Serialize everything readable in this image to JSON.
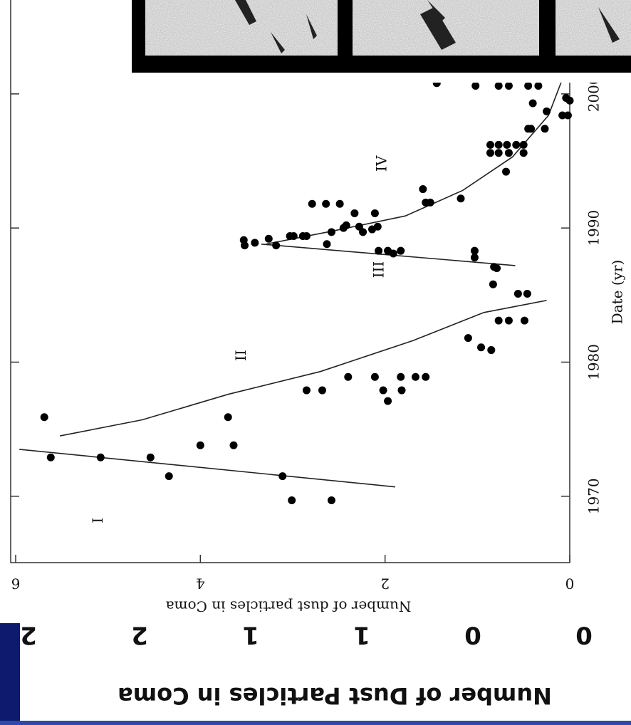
{
  "chart_data": {
    "type": "scatter",
    "x_label": "Date (yr)",
    "y_label": "Number of dust particles in Coma",
    "xlim": [
      1965,
      2007
    ],
    "xticks": [
      1970,
      1980,
      1990,
      2000
    ],
    "ylim": [
      0,
      6
    ],
    "yticks": [
      0,
      2,
      4,
      6
    ],
    "series": [
      {
        "color": "#000000",
        "x": [
          1975.9,
          1972.9,
          1972.9,
          1972.9,
          1971.5,
          1973.8,
          1975.9,
          1973.8,
          1971.5,
          1969.7,
          1969.7,
          1977.9,
          1977.9,
          1978.9,
          1978.9,
          1977.9,
          1977.1,
          1978.9,
          1977.9,
          1978.9,
          1978.9,
          1981.8,
          1981.1,
          1980.9,
          1983.1,
          1983.1,
          1983.1,
          1985.1,
          1985.1,
          1985.8,
          1987.1,
          1987.0,
          1987.8,
          1988.3,
          1988.3,
          1988.3,
          1988.1,
          1988.3,
          1989.1,
          1988.7,
          1988.9,
          1989.2,
          1988.7,
          1989.4,
          1989.4,
          1989.4,
          1989.4,
          1988.8,
          1989.7,
          1990.0,
          1990.2,
          1990.1,
          1989.7,
          1989.9,
          1990.1,
          1991.1,
          1991.1,
          1991.8,
          1991.8,
          1991.8,
          1992.9,
          1991.9,
          1991.9,
          1992.2,
          1994.2,
          1995.6,
          1995.6,
          1995.6,
          1995.6,
          1996.2,
          1996.2,
          1996.2,
          1996.2,
          1996.2,
          1997.4,
          1997.4,
          1997.4,
          1999.3,
          1998.7,
          1998.4,
          1998.4,
          1999.7,
          1999.5,
          2000.6,
          2000.6,
          2000.6,
          2000.6,
          2000.6,
          2000.8
        ],
        "values": [
          5.69,
          5.62,
          5.08,
          4.54,
          4.34,
          4.0,
          3.7,
          3.64,
          3.11,
          3.01,
          2.58,
          2.85,
          2.68,
          2.4,
          2.11,
          2.02,
          1.97,
          1.83,
          1.82,
          1.67,
          1.56,
          1.1,
          0.96,
          0.85,
          0.77,
          0.66,
          0.49,
          0.56,
          0.46,
          0.83,
          0.82,
          0.79,
          1.03,
          1.03,
          2.07,
          1.97,
          1.91,
          1.83,
          3.53,
          3.52,
          3.41,
          3.26,
          3.18,
          3.03,
          2.99,
          2.89,
          2.85,
          2.63,
          2.58,
          2.45,
          2.42,
          2.28,
          2.24,
          2.14,
          2.08,
          2.33,
          2.11,
          2.79,
          2.64,
          2.49,
          1.59,
          1.56,
          1.51,
          1.18,
          0.69,
          0.86,
          0.77,
          0.66,
          0.5,
          0.86,
          0.77,
          0.68,
          0.58,
          0.5,
          0.42,
          0.45,
          0.27,
          0.4,
          0.25,
          0.08,
          0.02,
          0.04,
          0,
          0.34,
          0.45,
          0.66,
          0.77,
          1.02,
          1.44
        ]
      }
    ],
    "fits": [
      {
        "x": [
          1973.5,
          1970.7
        ],
        "values": [
          5.96,
          1.89
        ]
      },
      {
        "x": [
          1974.5,
          1975.7,
          1977.6,
          1979.3,
          1981.6,
          1983.7,
          1984.6
        ],
        "values": [
          5.52,
          4.63,
          3.7,
          2.7,
          1.7,
          0.93,
          0.25
        ]
      },
      {
        "x": [
          1988.8,
          1987.2
        ],
        "values": [
          3.34,
          0.59
        ]
      },
      {
        "x": [
          1988.8,
          1989.8,
          1990.9,
          1992.8,
          1995.3,
          1998.4,
          2001.1
        ],
        "values": [
          3.29,
          2.55,
          1.78,
          1.16,
          0.62,
          0.23,
          0.08
        ]
      }
    ],
    "annotations": [
      {
        "text": "I",
        "x": 1968.2,
        "y": 5.1
      },
      {
        "text": "II",
        "x": 1980.5,
        "y": 3.55
      },
      {
        "text": "III",
        "x": 1986.9,
        "y": 2.06
      },
      {
        "text": "IV",
        "x": 1994.8,
        "y": 2.03
      }
    ]
  },
  "slide": {
    "axis_title": "Number of Dust Particles in Coma",
    "tick_labels": [
      "2",
      "2",
      "1",
      "1",
      "0",
      "0"
    ]
  }
}
